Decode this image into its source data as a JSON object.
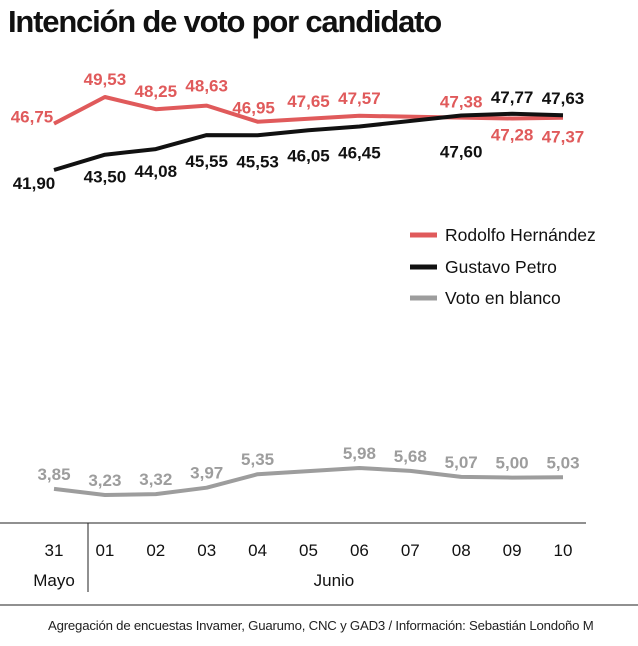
{
  "title": "Intención de voto por candidato",
  "source": "Agregación de encuestas Invamer, Guarumo, CNC y GAD3 / Información: Sebastián Londoño M",
  "chart_data": {
    "type": "line",
    "title": "Intención de voto por candidato",
    "x": [
      "31",
      "01",
      "02",
      "03",
      "04",
      "05",
      "06",
      "07",
      "08",
      "09",
      "10"
    ],
    "month_labels": [
      {
        "label": "Mayo",
        "from": 0,
        "to": 0
      },
      {
        "label": "Junio",
        "from": 1,
        "to": 10
      }
    ],
    "series": [
      {
        "name": "Rodolfo Hernández",
        "color": "#e05a5b",
        "points": [
          {
            "x": "31",
            "y": 46.75,
            "label": "46,75"
          },
          {
            "x": "01",
            "y": 49.53,
            "label": "49,53"
          },
          {
            "x": "02",
            "y": 48.25,
            "label": "48,25"
          },
          {
            "x": "03",
            "y": 48.63,
            "label": "48,63"
          },
          {
            "x": "04",
            "y": 46.95,
            "label": "46,95"
          },
          {
            "x": "06",
            "y": 47.57,
            "label": "47,57"
          },
          {
            "x": "08",
            "y": 47.38,
            "label": "47,38"
          },
          {
            "x": "09",
            "y": 47.28,
            "label": "47,28"
          },
          {
            "x": "10",
            "y": 47.37,
            "label": "47,37"
          }
        ],
        "extra_labels": [
          {
            "x": "05",
            "label": "47,65"
          }
        ]
      },
      {
        "name": "Gustavo Petro",
        "color": "#111111",
        "points": [
          {
            "x": "31",
            "y": 41.9,
            "label": "41,90"
          },
          {
            "x": "01",
            "y": 43.5,
            "label": "43,50"
          },
          {
            "x": "02",
            "y": 44.08,
            "label": "44,08"
          },
          {
            "x": "03",
            "y": 45.55,
            "label": "45,55"
          },
          {
            "x": "04",
            "y": 45.53,
            "label": "45,53"
          },
          {
            "x": "05",
            "y": 46.05,
            "label": "46,05"
          },
          {
            "x": "06",
            "y": 46.45,
            "label": "46,45"
          },
          {
            "x": "08",
            "y": 47.6,
            "label": "47,60"
          },
          {
            "x": "09",
            "y": 47.77,
            "label": "47,77"
          },
          {
            "x": "10",
            "y": 47.63,
            "label": "47,63"
          }
        ]
      },
      {
        "name": "Voto en blanco",
        "color": "#9d9d9d",
        "points": [
          {
            "x": "31",
            "y": 3.85,
            "label": "3,85"
          },
          {
            "x": "01",
            "y": 3.23,
            "label": "3,23"
          },
          {
            "x": "02",
            "y": 3.32,
            "label": "3,32"
          },
          {
            "x": "03",
            "y": 3.97,
            "label": "3,97"
          },
          {
            "x": "04",
            "y": 5.35,
            "label": "5,35"
          },
          {
            "x": "06",
            "y": 5.98,
            "label": "5,98"
          },
          {
            "x": "07",
            "y": 5.68,
            "label": "5,68"
          },
          {
            "x": "08",
            "y": 5.07,
            "label": "5,07"
          },
          {
            "x": "09",
            "y": 5.0,
            "label": "5,00"
          },
          {
            "x": "10",
            "y": 5.03,
            "label": "5,03"
          }
        ]
      }
    ],
    "legend_placement": "right",
    "grid": false
  }
}
